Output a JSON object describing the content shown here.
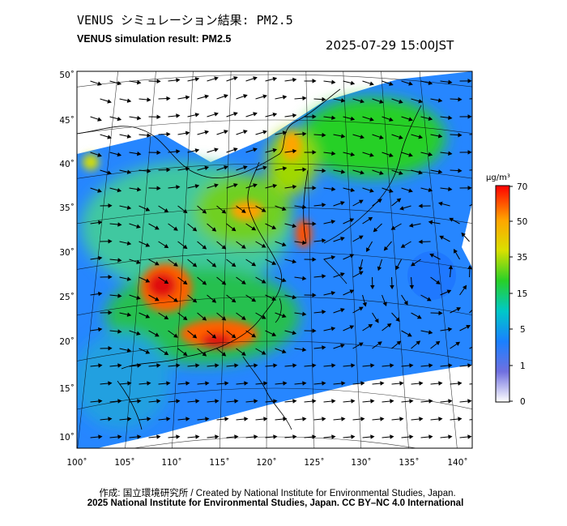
{
  "header": {
    "title_jp": "VENUS シミュレーション結果: PM2.5",
    "title_en": "VENUS simulation result: PM2.5",
    "timestamp": "2025-07-29 15:00JST"
  },
  "map": {
    "lat_labels": [
      "50˚",
      "45˚",
      "40˚",
      "35˚",
      "30˚",
      "25˚",
      "20˚",
      "15˚",
      "10˚"
    ],
    "lon_labels": [
      "100˚",
      "105˚",
      "110˚",
      "115˚",
      "120˚",
      "125˚",
      "130˚",
      "135˚",
      "140˚"
    ],
    "lat_values": [
      50,
      45,
      40,
      35,
      30,
      25,
      20,
      15,
      10
    ],
    "lon_values": [
      100,
      105,
      110,
      115,
      120,
      125,
      130,
      135,
      140
    ],
    "extent": {
      "lon_min": 100,
      "lon_max": 141,
      "lat_min": 9,
      "lat_max": 51
    }
  },
  "colorbar": {
    "unit": "μg/m³",
    "tick_labels": [
      "70",
      "50",
      "35",
      "15",
      "5",
      "1",
      "0"
    ],
    "stops": [
      "#ff0000",
      "#ffa500",
      "#d9e000",
      "#28d028",
      "#00c8c8",
      "#1a80ff",
      "#7070e0",
      "#ffffff"
    ]
  },
  "footer": {
    "credit": "作成: 国立環境研究所 / Created by National Institute for Environmental Studies, Japan.",
    "copyright": "2025 National Institute for Environmental Studies, Japan. CC BY–NC 4.0 International"
  }
}
